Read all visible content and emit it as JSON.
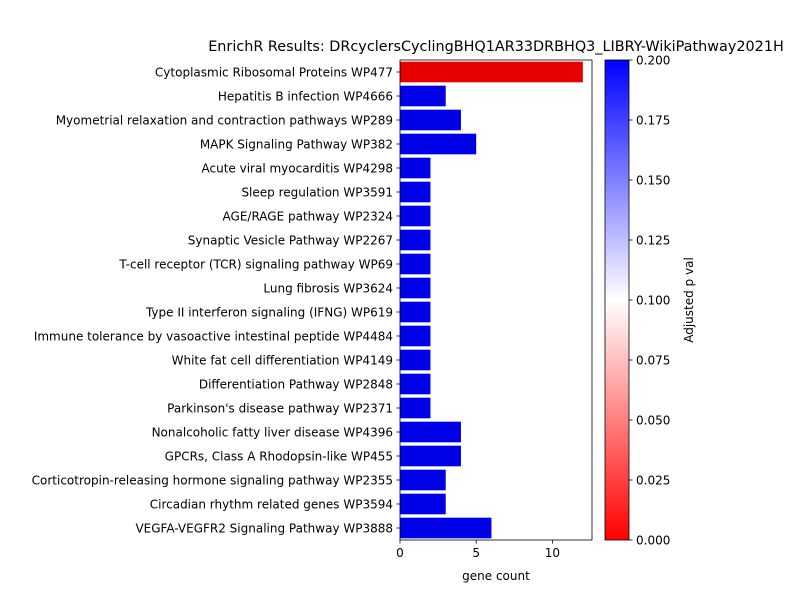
{
  "chart_data": {
    "type": "bar",
    "orientation": "horizontal",
    "title": "EnrichR Results: DRcyclersCyclingBHQ1AR33DRBHQ3_LIBRY-WikiPathway2021H",
    "xlabel": "gene count",
    "ylabel": "",
    "xlim": [
      0,
      12.6
    ],
    "x_ticks": [
      0,
      5,
      10
    ],
    "grid": false,
    "categories": [
      "Cytoplasmic Ribosomal Proteins WP477",
      "Hepatitis B infection WP4666",
      "Myometrial relaxation and contraction pathways WP289",
      "MAPK Signaling Pathway WP382",
      "Acute viral myocarditis WP4298",
      "Sleep regulation WP3591",
      "AGE/RAGE pathway WP2324",
      "Synaptic Vesicle Pathway WP2267",
      "T-cell receptor (TCR) signaling pathway WP69",
      "Lung fibrosis WP3624",
      "Type II interferon signaling (IFNG) WP619",
      "Immune tolerance by vasoactive intestinal peptide WP4484",
      "White fat cell differentiation WP4149",
      "Differentiation Pathway WP2848",
      "Parkinson's disease pathway WP2371",
      "Nonalcoholic fatty liver disease WP4396",
      "GPCRs, Class A Rhodopsin-like WP455",
      "Corticotropin-releasing hormone signaling pathway WP2355",
      "Circadian rhythm related genes WP3594",
      "VEGFA-VEGFR2 Signaling Pathway WP3888"
    ],
    "values": [
      12,
      3,
      4,
      5,
      2,
      2,
      2,
      2,
      2,
      2,
      2,
      2,
      2,
      2,
      2,
      4,
      4,
      3,
      3,
      6
    ],
    "adjusted_p_values": [
      0.0,
      0.2,
      0.2,
      0.2,
      0.2,
      0.2,
      0.2,
      0.2,
      0.2,
      0.2,
      0.2,
      0.2,
      0.2,
      0.2,
      0.2,
      0.2,
      0.2,
      0.2,
      0.2,
      0.2
    ],
    "colorbar": {
      "label": "Adjusted p val",
      "range": [
        0.0,
        0.2
      ],
      "ticks": [
        "0.000",
        "0.025",
        "0.050",
        "0.075",
        "0.100",
        "0.125",
        "0.150",
        "0.175",
        "0.200"
      ],
      "colormap": [
        "#ff0000",
        "#ffffff",
        "#0000ff"
      ]
    }
  }
}
